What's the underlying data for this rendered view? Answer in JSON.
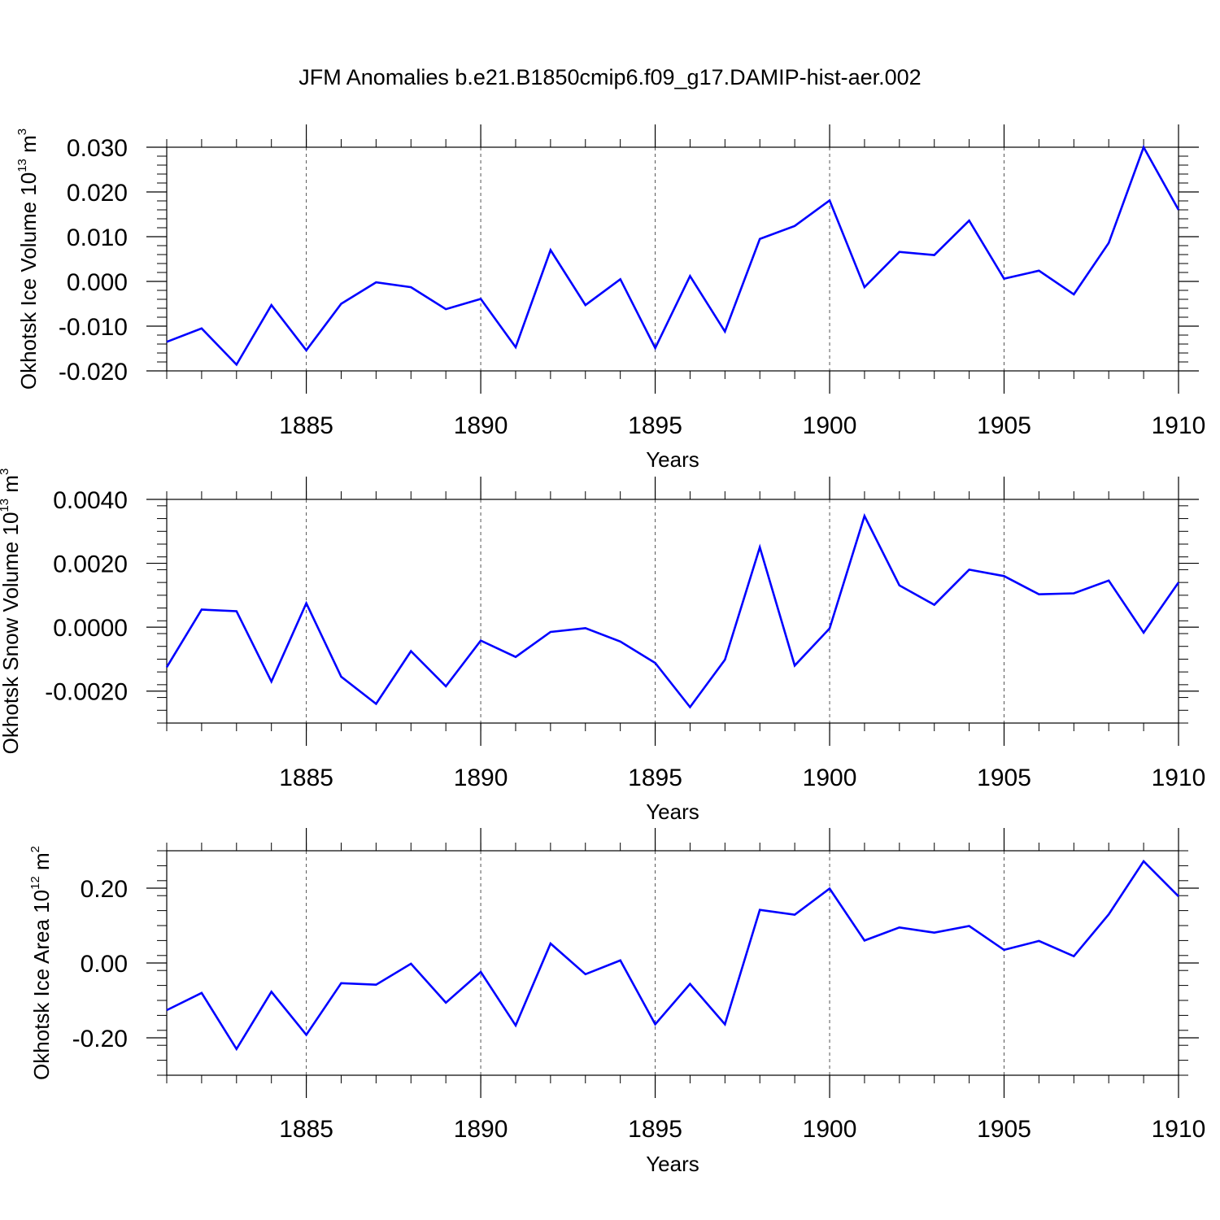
{
  "title": "JFM Anomalies b.e21.B1850cmip6.f09_g17.DAMIP-hist-aer.002",
  "chart_data": [
    {
      "type": "line",
      "title": "JFM Anomalies b.e21.B1850cmip6.f09_g17.DAMIP-hist-aer.002",
      "xlabel": "Years",
      "ylabel": {
        "text": "Okhotsk Ice Volume 10",
        "sup": "13",
        "unit": " m",
        "unit_sup": "3"
      },
      "xlim": [
        1881,
        1910
      ],
      "ylim": [
        -0.02,
        0.03
      ],
      "xticks": [
        "1885",
        "1890",
        "1895",
        "1900",
        "1905",
        "1910"
      ],
      "yticks": [
        "-0.020",
        "-0.010",
        "0.000",
        "0.010",
        "0.020",
        "0.030"
      ],
      "grid": "x-dashed",
      "series": [
        {
          "name": "Okhotsk Ice Volume",
          "color": "#0000ff",
          "x": [
            1881,
            1882,
            1883,
            1884,
            1885,
            1886,
            1887,
            1888,
            1889,
            1890,
            1891,
            1892,
            1893,
            1894,
            1895,
            1896,
            1897,
            1898,
            1899,
            1900,
            1901,
            1902,
            1903,
            1904,
            1905,
            1906,
            1907,
            1908,
            1909,
            1910
          ],
          "values": [
            -0.0135,
            -0.0105,
            -0.0186,
            -0.0053,
            -0.0154,
            -0.005,
            -0.0002,
            -0.0013,
            -0.0062,
            -0.0039,
            -0.0147,
            0.007,
            -0.0053,
            0.0005,
            -0.0149,
            0.0012,
            -0.0112,
            0.0095,
            0.0124,
            0.0181,
            -0.0013,
            0.0066,
            0.0059,
            0.0136,
            0.0006,
            0.0024,
            -0.0029,
            0.0086,
            0.03,
            0.016
          ]
        }
      ]
    },
    {
      "type": "line",
      "xlabel": "Years",
      "ylabel": {
        "text": "Okhotsk Snow Volume 10",
        "sup": "13",
        "unit": " m",
        "unit_sup": "3"
      },
      "xlim": [
        1881,
        1910
      ],
      "ylim": [
        -0.003,
        0.004
      ],
      "xticks": [
        "1885",
        "1890",
        "1895",
        "1900",
        "1905",
        "1910"
      ],
      "yticks": [
        "-0.0020",
        "0.0000",
        "0.0020",
        "0.0040"
      ],
      "grid": "x-dashed",
      "series": [
        {
          "name": "Okhotsk Snow Volume",
          "color": "#0000ff",
          "x": [
            1881,
            1882,
            1883,
            1884,
            1885,
            1886,
            1887,
            1888,
            1889,
            1890,
            1891,
            1892,
            1893,
            1894,
            1895,
            1896,
            1897,
            1898,
            1899,
            1900,
            1901,
            1902,
            1903,
            1904,
            1905,
            1906,
            1907,
            1908,
            1909,
            1910
          ],
          "values": [
            -0.00125,
            0.00055,
            0.0005,
            -0.0017,
            0.00075,
            -0.00155,
            -0.0024,
            -0.00075,
            -0.00185,
            -0.00042,
            -0.00093,
            -0.00015,
            -3e-05,
            -0.00045,
            -0.00112,
            -0.0025,
            -0.00102,
            0.0025,
            -0.0012,
            -4e-05,
            0.00348,
            0.00131,
            0.0007,
            0.0018,
            0.0016,
            0.00103,
            0.00106,
            0.00146,
            -0.00017,
            0.0014
          ]
        }
      ]
    },
    {
      "type": "line",
      "xlabel": "Years",
      "ylabel": {
        "text": "Okhotsk Ice Area 10",
        "sup": "12",
        "unit": " m",
        "unit_sup": "2"
      },
      "xlim": [
        1881,
        1910
      ],
      "ylim": [
        -0.3,
        0.3
      ],
      "xticks": [
        "1885",
        "1890",
        "1895",
        "1900",
        "1905",
        "1910"
      ],
      "yticks": [
        "-0.20",
        "0.00",
        "0.20"
      ],
      "grid": "x-dashed",
      "series": [
        {
          "name": "Okhotsk Ice Area",
          "color": "#0000ff",
          "x": [
            1881,
            1882,
            1883,
            1884,
            1885,
            1886,
            1887,
            1888,
            1889,
            1890,
            1891,
            1892,
            1893,
            1894,
            1895,
            1896,
            1897,
            1898,
            1899,
            1900,
            1901,
            1902,
            1903,
            1904,
            1905,
            1906,
            1907,
            1908,
            1909,
            1910
          ],
          "values": [
            -0.126,
            -0.08,
            -0.23,
            -0.077,
            -0.192,
            -0.054,
            -0.058,
            -0.002,
            -0.106,
            -0.024,
            -0.167,
            0.052,
            -0.03,
            0.007,
            -0.164,
            -0.056,
            -0.164,
            0.142,
            0.129,
            0.199,
            0.06,
            0.095,
            0.081,
            0.099,
            0.035,
            0.059,
            0.018,
            0.13,
            0.272,
            0.178
          ]
        }
      ]
    }
  ]
}
